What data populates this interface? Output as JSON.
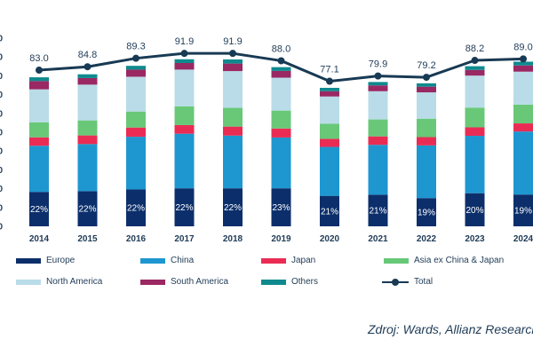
{
  "chart_data": {
    "type": "bar",
    "categories": [
      "2014",
      "2015",
      "2016",
      "2017",
      "2018",
      "2019",
      "2020",
      "2021",
      "2022",
      "2023",
      "2024"
    ],
    "series": [
      {
        "name": "Europe",
        "color": "#0c2f6b",
        "values": [
          18.3,
          18.7,
          19.6,
          20.2,
          20.2,
          20.2,
          16.2,
          16.8,
          15.0,
          17.6,
          16.9
        ]
      },
      {
        "name": "China",
        "color": "#1e97d1",
        "values": [
          24.5,
          25.0,
          28.0,
          29.0,
          28.0,
          27.0,
          26.0,
          26.5,
          28.0,
          30.5,
          33.5
        ]
      },
      {
        "name": "Japan",
        "color": "#ea2c54",
        "values": [
          4.5,
          4.6,
          4.9,
          4.6,
          4.8,
          4.8,
          4.3,
          4.5,
          4.4,
          4.5,
          4.3
        ]
      },
      {
        "name": "Asia ex China & Japan",
        "color": "#68c878",
        "values": [
          8.0,
          8.0,
          8.5,
          10.0,
          10.0,
          9.5,
          8.0,
          9.0,
          9.8,
          10.5,
          10.0
        ]
      },
      {
        "name": "North America",
        "color": "#b9dce8",
        "values": [
          17.5,
          19.0,
          18.5,
          19.5,
          19.5,
          17.5,
          14.5,
          15.0,
          14.0,
          17.0,
          17.5
        ]
      },
      {
        "name": "South America",
        "color": "#9a2863",
        "values": [
          4.4,
          3.5,
          3.8,
          3.5,
          4.0,
          3.6,
          2.8,
          3.1,
          3.0,
          3.0,
          3.3
        ]
      },
      {
        "name": "Others",
        "color": "#0e8a8e",
        "values": [
          2.0,
          2.0,
          2.0,
          2.0,
          2.2,
          2.0,
          1.8,
          1.8,
          1.8,
          2.0,
          2.0
        ]
      }
    ],
    "total": {
      "name": "Total",
      "color": "#183a54",
      "values": [
        83.0,
        84.8,
        89.3,
        91.9,
        91.9,
        88.0,
        77.1,
        79.9,
        79.2,
        88.2,
        89.0
      ],
      "labels": [
        "83.0",
        "84.8",
        "89.3",
        "91.9",
        "91.9",
        "88.0",
        "77.1",
        "79.9",
        "79.2",
        "88.2",
        "89.0"
      ]
    },
    "europe_share_labels": [
      "22%",
      "22%",
      "22%",
      "22%",
      "22%",
      "23%",
      "21%",
      "21%",
      "19%",
      "20%",
      "19%"
    ],
    "ylim": [
      0,
      100
    ],
    "ytick_labels": [
      "0",
      "0",
      "0",
      "0",
      "0",
      "0",
      "0",
      "0",
      "0",
      "0",
      "0"
    ],
    "legend_position": "bottom",
    "source": "Zdroj: Wards, Allianz Research"
  }
}
